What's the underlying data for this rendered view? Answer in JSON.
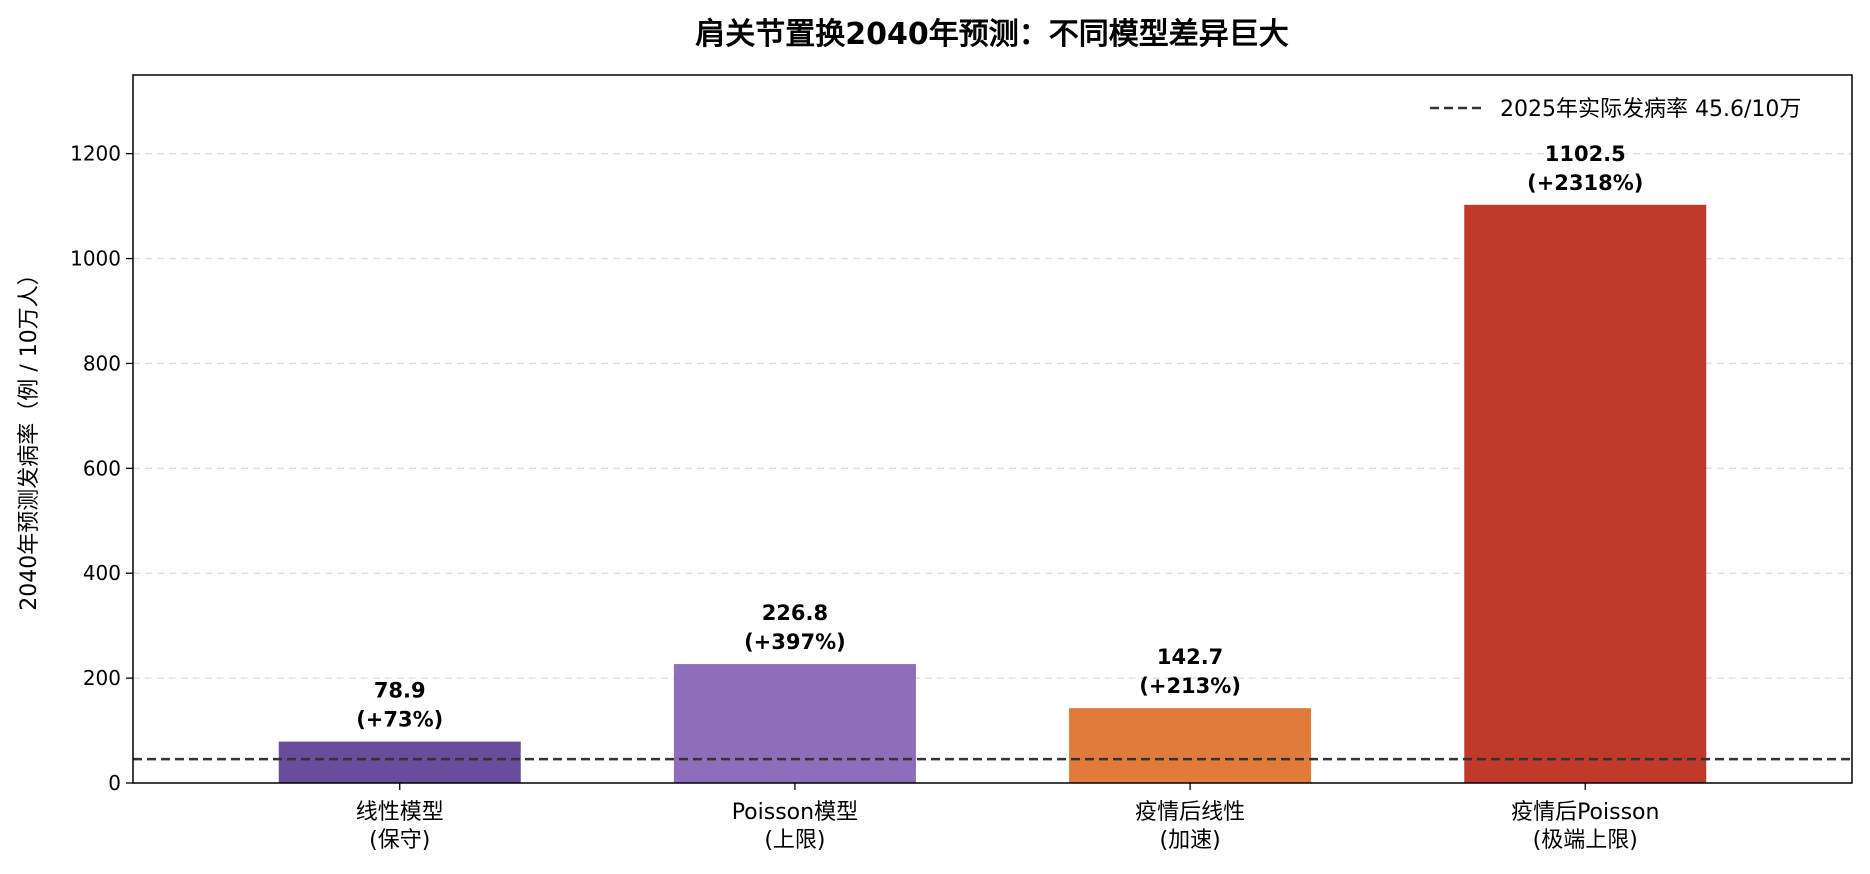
{
  "chart_data": {
    "type": "bar",
    "title": "肩关节置换2040年预测：不同模型差异巨大",
    "ylabel": "2040年预测发病率（例 / 10万人）",
    "xlabel": "",
    "categories": [
      [
        "线性模型",
        "(保守)"
      ],
      [
        "Poisson模型",
        "(上限)"
      ],
      [
        "疫情后线性",
        "(加速)"
      ],
      [
        "疫情后Poisson",
        "(极端上限)"
      ]
    ],
    "values": [
      78.9,
      226.8,
      142.7,
      1102.5
    ],
    "data_labels": [
      [
        "78.9",
        "(+73%)"
      ],
      [
        "226.8",
        "(+397%)"
      ],
      [
        "142.7",
        "(+213%)"
      ],
      [
        "1102.5",
        "(+2318%)"
      ]
    ],
    "colors": [
      "#6a4c9c",
      "#8e6dba",
      "#e07b3c",
      "#c0392b"
    ],
    "ylim": [
      0,
      1350
    ],
    "yticks": [
      0,
      200,
      400,
      600,
      800,
      1000,
      1200
    ],
    "grid": "horizontal-dashed",
    "reference_line": {
      "value": 45.6,
      "label": "2025年实际发病率 45.6/10万",
      "style": "dashed",
      "color": "#333333"
    },
    "legend_position": "top-right"
  }
}
